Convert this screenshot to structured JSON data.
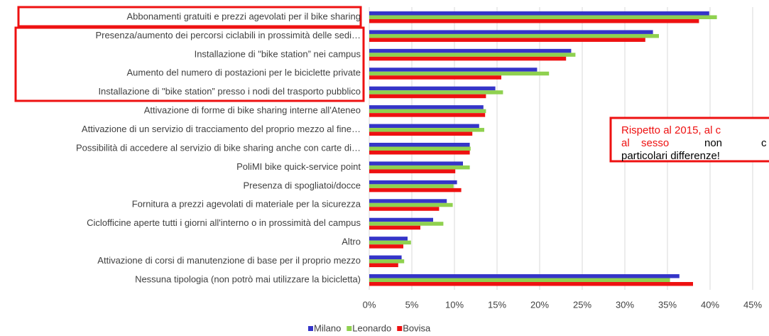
{
  "chart_data": {
    "type": "bar",
    "orientation": "horizontal",
    "categories": [
      "Abbonamenti gratuiti e prezzi agevolati per il bike sharing",
      "Presenza/aumento dei percorsi ciclabili in prossimità delle sedi…",
      "Installazione di \"bike station” nei campus",
      "Aumento del numero di postazioni per le biciclette private",
      "Installazione di \"bike station” presso i nodi del trasporto pubblico",
      "Attivazione di forme di bike sharing interne all'Ateneo",
      "Attivazione di un servizio di tracciamento del proprio mezzo al fine…",
      "Possibilità di accedere al servizio di bike sharing anche con carte di…",
      "PoliMI bike quick-service point",
      "Presenza di spogliatoi/docce",
      "Fornitura a prezzi agevolati di materiale per la sicurezza",
      "Ciclofficine aperte tutti i giorni all'interno o in prossimità del campus",
      "Altro",
      "Attivazione di corsi di manutenzione di base per il proprio mezzo",
      "Nessuna tipologia (non potrò mai utilizzare la bicicletta)"
    ],
    "series": [
      {
        "name": "Milano",
        "color": "#3535c8",
        "values": [
          39.9,
          33.3,
          23.7,
          19.7,
          14.8,
          13.4,
          12.9,
          11.8,
          11.0,
          10.3,
          9.1,
          7.5,
          4.5,
          3.8,
          36.4
        ]
      },
      {
        "name": "Leonardo",
        "color": "#8fd14f",
        "values": [
          40.8,
          34.0,
          24.2,
          21.1,
          15.7,
          13.7,
          13.5,
          11.9,
          11.8,
          9.9,
          9.8,
          8.7,
          4.9,
          4.1,
          35.3
        ]
      },
      {
        "name": "Bovisa",
        "color": "#ee1111",
        "values": [
          38.7,
          32.4,
          23.1,
          15.5,
          13.7,
          13.6,
          12.1,
          11.8,
          10.1,
          10.8,
          8.2,
          6.0,
          4.0,
          3.4,
          38.0
        ]
      }
    ],
    "xlim": [
      0,
      45
    ],
    "xticks": [
      {
        "value": 0,
        "label": "0%"
      },
      {
        "value": 5,
        "label": "5%"
      },
      {
        "value": 10,
        "label": "10%"
      },
      {
        "value": 15,
        "label": "15%"
      },
      {
        "value": 20,
        "label": "20%"
      },
      {
        "value": 25,
        "label": "25%"
      },
      {
        "value": 30,
        "label": "30%"
      },
      {
        "value": 35,
        "label": "35%"
      },
      {
        "value": 40,
        "label": "40%"
      },
      {
        "value": 45,
        "label": "45%"
      }
    ],
    "grid": true,
    "legend": "bottom",
    "annotation": [
      {
        "text": "Rispetto al 2015, al c",
        "color": "#ee1111"
      },
      {
        "text": "al",
        "color": "#ee1111"
      },
      {
        "text": "sesso",
        "color": "#ee1111"
      },
      {
        "text": "non",
        "color": "#000000"
      },
      {
        "text": "c",
        "color": "#000000"
      },
      {
        "text": "particolari differenze!",
        "color": "#000000"
      }
    ]
  }
}
